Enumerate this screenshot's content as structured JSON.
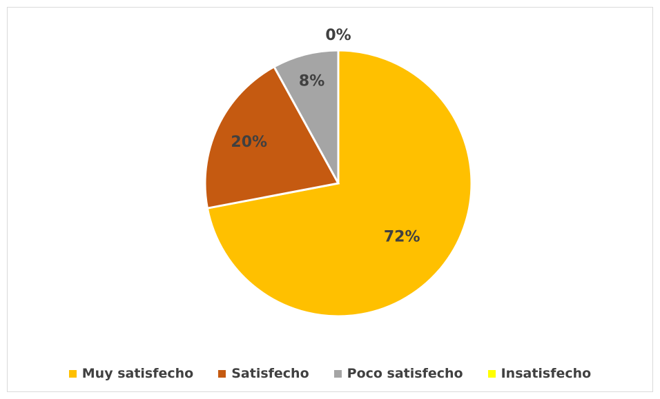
{
  "chart_data": {
    "type": "pie",
    "title": "",
    "categories": [
      "Muy satisfecho",
      "Satisfecho",
      "Poco satisfecho",
      "Insatisfecho"
    ],
    "values": [
      72,
      20,
      8,
      0
    ],
    "labels": [
      "72%",
      "20%",
      "8%",
      "0%"
    ],
    "colors": [
      "#FFC000",
      "#C55A11",
      "#A5A5A5",
      "#FFFF00"
    ],
    "legend_position": "bottom"
  },
  "legend": [
    {
      "label": "Muy satisfecho",
      "color": "#FFC000"
    },
    {
      "label": "Satisfecho",
      "color": "#C55A11"
    },
    {
      "label": "Poco satisfecho",
      "color": "#A5A5A5"
    },
    {
      "label": "Insatisfecho",
      "color": "#FFFF00"
    }
  ]
}
